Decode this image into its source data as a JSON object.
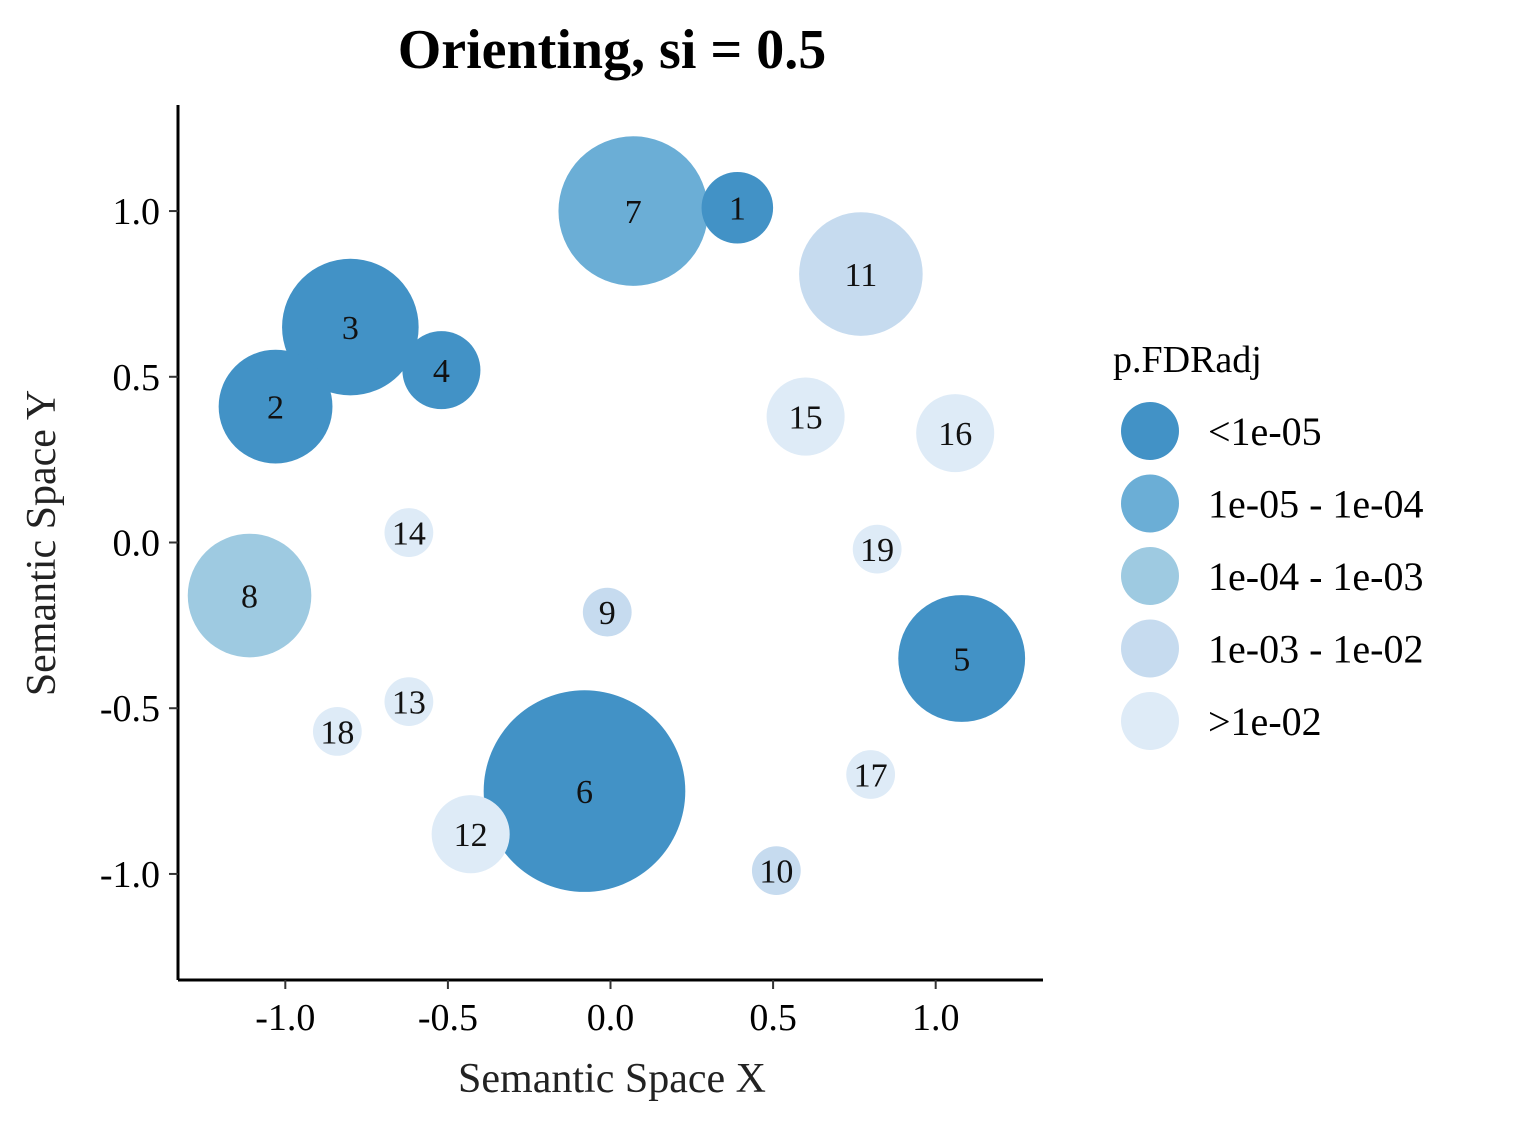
{
  "chart_data": {
    "type": "scatter",
    "title": "Orienting, si = 0.5",
    "xlabel": "Semantic Space X",
    "ylabel": "Semantic Space Y",
    "xlim": [
      -1.33,
      1.33
    ],
    "ylim": [
      -1.32,
      1.32
    ],
    "xticks": [
      -1.0,
      -0.5,
      0.0,
      0.5,
      1.0
    ],
    "yticks": [
      -1.0,
      -0.5,
      0.0,
      0.5,
      1.0
    ],
    "xtick_labels": [
      "-1.0",
      "-0.5",
      "0.0",
      "0.5",
      "1.0"
    ],
    "ytick_labels": [
      "-1.0",
      "-0.5",
      "0.0",
      "0.5",
      "1.0"
    ],
    "grid": false,
    "legend": {
      "title": "p.FDRadj",
      "position": "right",
      "entries": [
        {
          "label": "<1e-05",
          "color": "#4292c6"
        },
        {
          "label": "1e-05 - 1e-04",
          "color": "#6baed6"
        },
        {
          "label": "1e-04 - 1e-03",
          "color": "#9ecae1"
        },
        {
          "label": "1e-03 - 1e-02",
          "color": "#c6dbef"
        },
        {
          "label": ">1e-02",
          "color": "#deebf7"
        }
      ]
    },
    "points": [
      {
        "label": "1",
        "x": 0.39,
        "y": 1.01,
        "size": 0.11,
        "category": 0
      },
      {
        "label": "2",
        "x": -1.03,
        "y": 0.41,
        "size": 0.175,
        "category": 0
      },
      {
        "label": "3",
        "x": -0.8,
        "y": 0.65,
        "size": 0.21,
        "category": 0
      },
      {
        "label": "4",
        "x": -0.52,
        "y": 0.52,
        "size": 0.12,
        "category": 0
      },
      {
        "label": "5",
        "x": 1.08,
        "y": -0.35,
        "size": 0.195,
        "category": 0
      },
      {
        "label": "6",
        "x": -0.08,
        "y": -0.75,
        "size": 0.31,
        "category": 0
      },
      {
        "label": "7",
        "x": 0.07,
        "y": 1.0,
        "size": 0.23,
        "category": 1
      },
      {
        "label": "8",
        "x": -1.11,
        "y": -0.16,
        "size": 0.19,
        "category": 2
      },
      {
        "label": "9",
        "x": -0.01,
        "y": -0.21,
        "size": 0.075,
        "category": 3
      },
      {
        "label": "10",
        "x": 0.51,
        "y": -0.99,
        "size": 0.075,
        "category": 3
      },
      {
        "label": "11",
        "x": 0.77,
        "y": 0.81,
        "size": 0.19,
        "category": 3
      },
      {
        "label": "12",
        "x": -0.43,
        "y": -0.88,
        "size": 0.12,
        "category": 4
      },
      {
        "label": "13",
        "x": -0.62,
        "y": -0.48,
        "size": 0.075,
        "category": 4
      },
      {
        "label": "14",
        "x": -0.62,
        "y": 0.03,
        "size": 0.075,
        "category": 4
      },
      {
        "label": "15",
        "x": 0.6,
        "y": 0.38,
        "size": 0.12,
        "category": 4
      },
      {
        "label": "16",
        "x": 1.06,
        "y": 0.33,
        "size": 0.12,
        "category": 4
      },
      {
        "label": "17",
        "x": 0.8,
        "y": -0.7,
        "size": 0.075,
        "category": 4
      },
      {
        "label": "18",
        "x": -0.84,
        "y": -0.57,
        "size": 0.075,
        "category": 4
      },
      {
        "label": "19",
        "x": 0.82,
        "y": -0.02,
        "size": 0.075,
        "category": 4
      }
    ]
  }
}
